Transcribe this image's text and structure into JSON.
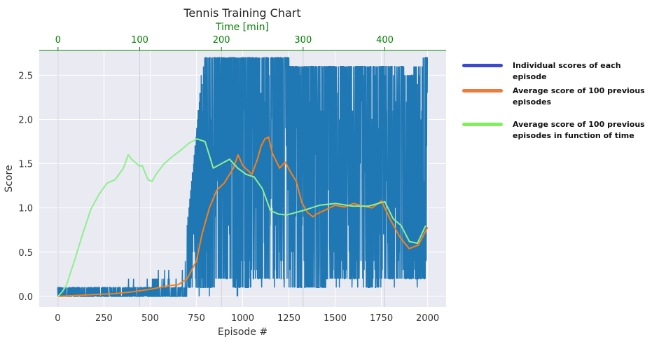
{
  "chart_data": {
    "type": "line",
    "title": "Tennis Training Chart",
    "xlabel": "Episode #",
    "ylabel": "Score",
    "top_xlabel": "Time [min]",
    "xlim": [
      -100,
      2100
    ],
    "ylim": [
      -0.12,
      2.78
    ],
    "top_xlim": [
      -23,
      475
    ],
    "x_ticks": [
      0,
      250,
      500,
      750,
      1000,
      1250,
      1500,
      1750,
      2000
    ],
    "y_ticks": [
      0.0,
      0.5,
      1.0,
      1.5,
      2.0,
      2.5
    ],
    "top_x_ticks": [
      0,
      100,
      200,
      300,
      400
    ],
    "grid": true,
    "legend_position": "right",
    "series": [
      {
        "name": "Individual scores of each episode",
        "color": "#1f77b4",
        "legend_color": "#3a4bd0",
        "axis": "bottom",
        "x_range": [
          0,
          2000
        ],
        "points_envelope": [
          [
            0,
            0.0,
            0.1
          ],
          [
            100,
            0.0,
            0.1
          ],
          [
            200,
            0.0,
            0.1
          ],
          [
            300,
            0.0,
            0.1
          ],
          [
            400,
            0.0,
            0.2
          ],
          [
            500,
            0.0,
            0.2
          ],
          [
            550,
            0.0,
            0.3
          ],
          [
            600,
            0.0,
            0.3
          ],
          [
            650,
            0.0,
            0.4
          ],
          [
            700,
            0.0,
            0.8
          ],
          [
            750,
            0.0,
            1.8
          ],
          [
            780,
            0.0,
            2.6
          ],
          [
            800,
            0.0,
            2.7
          ],
          [
            900,
            0.1,
            2.7
          ],
          [
            1000,
            0.0,
            2.7
          ],
          [
            1100,
            0.1,
            2.7
          ],
          [
            1200,
            0.1,
            2.7
          ],
          [
            1300,
            0.0,
            2.6
          ],
          [
            1400,
            0.0,
            2.6
          ],
          [
            1500,
            0.1,
            2.6
          ],
          [
            1600,
            0.1,
            2.6
          ],
          [
            1700,
            0.0,
            2.6
          ],
          [
            1800,
            0.1,
            2.6
          ],
          [
            1850,
            0.1,
            2.6
          ],
          [
            1900,
            0.1,
            2.5
          ],
          [
            1950,
            0.1,
            2.6
          ],
          [
            2000,
            0.1,
            2.7
          ]
        ]
      },
      {
        "name": "Average score of 100 previous episodes",
        "color": "#ff7f0e",
        "legend_color": "#f07a3e",
        "axis": "bottom",
        "x": [
          0,
          100,
          200,
          300,
          400,
          500,
          550,
          600,
          650,
          700,
          750,
          780,
          820,
          860,
          900,
          950,
          975,
          1000,
          1050,
          1080,
          1100,
          1120,
          1140,
          1160,
          1200,
          1230,
          1260,
          1290,
          1320,
          1350,
          1380,
          1400,
          1450,
          1500,
          1550,
          1600,
          1650,
          1700,
          1750,
          1800,
          1850,
          1900,
          1950,
          2000
        ],
        "y": [
          0.0,
          0.01,
          0.02,
          0.03,
          0.05,
          0.08,
          0.1,
          0.12,
          0.13,
          0.2,
          0.4,
          0.7,
          1.0,
          1.2,
          1.28,
          1.45,
          1.6,
          1.48,
          1.38,
          1.55,
          1.7,
          1.78,
          1.8,
          1.62,
          1.45,
          1.52,
          1.4,
          1.3,
          1.06,
          0.95,
          0.9,
          0.93,
          0.98,
          1.03,
          1.01,
          1.05,
          1.02,
          1.0,
          1.08,
          0.86,
          0.67,
          0.54,
          0.58,
          0.78
        ]
      },
      {
        "name": "Average score of 100 previous episodes in function of time",
        "color": "#90ee90",
        "legend_color": "#7ef25a",
        "axis": "top",
        "x": [
          0,
          5,
          10,
          20,
          30,
          40,
          50,
          60,
          70,
          80,
          86,
          90,
          100,
          103,
          110,
          115,
          120,
          130,
          140,
          150,
          160,
          170,
          180,
          185,
          190,
          200,
          210,
          220,
          230,
          240,
          250,
          260,
          270,
          280,
          300,
          320,
          340,
          360,
          380,
          400,
          410,
          420,
          430,
          440,
          450
        ],
        "y": [
          0.0,
          0.05,
          0.12,
          0.4,
          0.7,
          0.98,
          1.15,
          1.28,
          1.32,
          1.45,
          1.6,
          1.55,
          1.47,
          1.48,
          1.32,
          1.3,
          1.38,
          1.5,
          1.58,
          1.65,
          1.73,
          1.78,
          1.75,
          1.6,
          1.45,
          1.5,
          1.55,
          1.45,
          1.38,
          1.35,
          1.22,
          0.97,
          0.93,
          0.92,
          0.97,
          1.03,
          1.05,
          1.02,
          1.02,
          1.07,
          0.88,
          0.8,
          0.62,
          0.6,
          0.8
        ]
      }
    ]
  }
}
